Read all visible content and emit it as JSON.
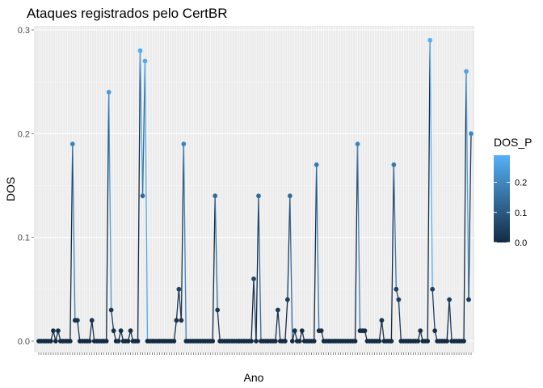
{
  "colors": {
    "panel_background": "#ebebeb",
    "grid_major": "#ffffff",
    "grid_minor": "#f5f5f5",
    "gradient_low": "#132b43",
    "gradient_high": "#56b1f7",
    "text": "#000000",
    "tick_text": "#4d4d4d"
  },
  "chart_data": {
    "type": "line",
    "title": "Ataques registrados pelo CertBR",
    "xlabel": "Ano",
    "ylabel": "DOS",
    "ylim": [
      0,
      0.3
    ],
    "yticks": [
      0.0,
      0.1,
      0.2,
      0.3
    ],
    "ytick_labels": [
      "0.0",
      "0.1",
      "0.2",
      "0.3"
    ],
    "grid": true,
    "legend_position": "right",
    "x_tick_label_note": "x-axis tick labels are overlapping and illegible",
    "series": [
      {
        "values": [
          0,
          0,
          0,
          0,
          0,
          0,
          0.01,
          0,
          0.01,
          0,
          0,
          0,
          0,
          0,
          0.19,
          0.02,
          0.02,
          0,
          0,
          0,
          0,
          0,
          0.02,
          0,
          0,
          0,
          0,
          0,
          0,
          0.24,
          0.03,
          0.01,
          0,
          0,
          0.01,
          0,
          0,
          0,
          0.01,
          0,
          0,
          0,
          0.28,
          0.14,
          0.27,
          0,
          0,
          0,
          0,
          0,
          0,
          0,
          0,
          0,
          0,
          0,
          0,
          0.02,
          0.05,
          0.02,
          0.19,
          0,
          0,
          0,
          0,
          0,
          0,
          0,
          0,
          0,
          0,
          0,
          0,
          0.14,
          0.03,
          0,
          0,
          0,
          0,
          0,
          0,
          0,
          0,
          0,
          0,
          0,
          0,
          0,
          0,
          0.06,
          0,
          0.14,
          0,
          0,
          0,
          0,
          0,
          0,
          0,
          0.03,
          0,
          0,
          0,
          0.04,
          0.14,
          0,
          0.01,
          0,
          0,
          0.01,
          0,
          0,
          0,
          0,
          0,
          0.17,
          0.01,
          0.01,
          0,
          0,
          0,
          0,
          0,
          0,
          0,
          0,
          0,
          0,
          0,
          0,
          0,
          0,
          0.19,
          0.01,
          0.01,
          0.01,
          0,
          0,
          0,
          0,
          0,
          0,
          0.02,
          0,
          0,
          0,
          0,
          0.17,
          0.05,
          0.04,
          0,
          0,
          0,
          0,
          0,
          0,
          0,
          0,
          0.01,
          0,
          0,
          0,
          0.29,
          0.05,
          0.01,
          0,
          0,
          0,
          0,
          0,
          0.04,
          0,
          0,
          0,
          0,
          0,
          0,
          0.26,
          0.04,
          0.2
        ]
      }
    ],
    "legend": {
      "title": "DOS_P",
      "color_range": [
        0,
        0.29
      ],
      "ticks": [
        0.0,
        0.1,
        0.2
      ],
      "tick_labels": [
        "0.0",
        "0.1",
        "0.2"
      ]
    }
  }
}
